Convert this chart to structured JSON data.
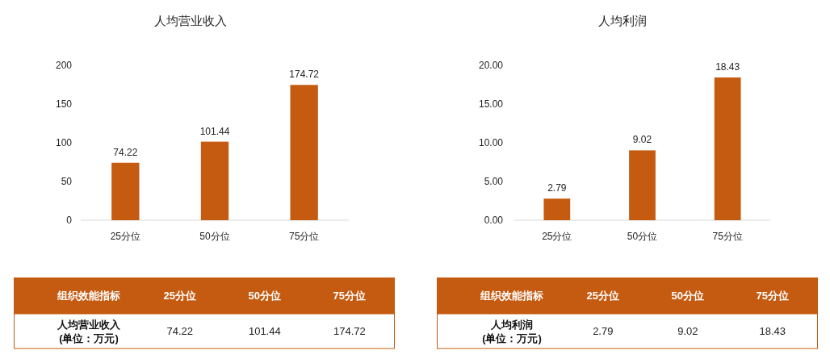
{
  "chart_data": [
    {
      "type": "bar",
      "title": "人均营业收入",
      "categories": [
        "25分位",
        "50分位",
        "75分位"
      ],
      "values": [
        74.22,
        101.44,
        174.72
      ],
      "color": "#c55a11",
      "ylim": [
        0,
        200
      ],
      "yticks": [
        0,
        50,
        100,
        150,
        200
      ],
      "data_labels": true,
      "annotations": [
        "组织效能指标",
        "人均营业收入\n(单位：万元)",
        "74.22",
        "101.44",
        "174.72"
      ]
    },
    {
      "type": "bar",
      "title": "人均利润",
      "categories": [
        "25分位",
        "50分位",
        "75分位"
      ],
      "values": [
        2.79,
        9.02,
        18.43
      ],
      "color": "#c55a11",
      "ylim": [
        0,
        20
      ],
      "yticks": [
        {
          "value": 0,
          "label": "0.00"
        },
        {
          "value": 5,
          "label": "5.00"
        },
        {
          "value": 10,
          "label": "10.00"
        },
        {
          "value": 15,
          "label": "15.00"
        },
        {
          "value": 20,
          "label": "20.00"
        }
      ],
      "data_labels": true,
      "annotations": [
        "组织效能指标",
        "人均利润\n(单位：万元)",
        "2.79",
        "9.02",
        "18.43"
      ]
    }
  ]
}
